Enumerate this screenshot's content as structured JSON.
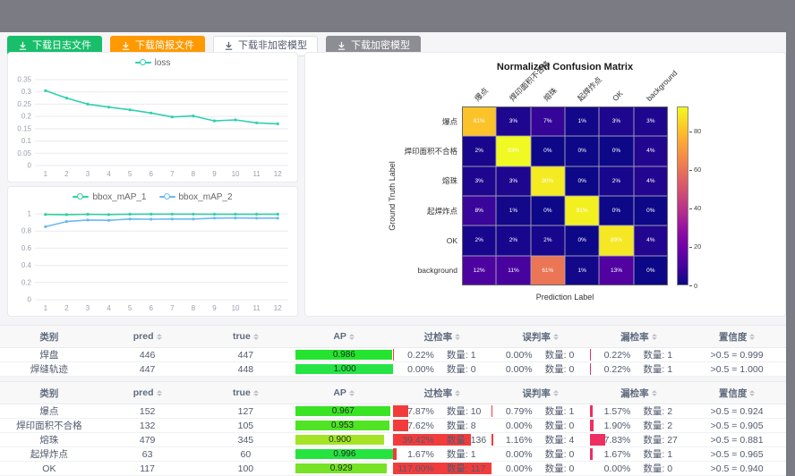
{
  "toolbar": {
    "buttons": [
      {
        "label": "下载日志文件",
        "style": "success"
      },
      {
        "label": "下载简报文件",
        "style": "warning"
      },
      {
        "label": "下载非加密模型",
        "style": "default"
      },
      {
        "label": "下载加密模型",
        "style": "gray"
      }
    ]
  },
  "chart_data": [
    {
      "type": "line",
      "x": [
        "1",
        "2",
        "3",
        "4",
        "5",
        "6",
        "7",
        "8",
        "9",
        "10",
        "11",
        "12"
      ],
      "yticks": [
        "0",
        "0.05",
        "0.1",
        "0.15",
        "0.2",
        "0.25",
        "0.3",
        "0.35"
      ],
      "ylim": [
        0,
        0.35
      ],
      "legend_position": "top",
      "grid": true,
      "series": [
        {
          "name": "loss",
          "color": "#2fd0b2",
          "values": [
            0.305,
            0.275,
            0.25,
            0.238,
            0.227,
            0.214,
            0.198,
            0.202,
            0.182,
            0.186,
            0.174,
            0.17
          ]
        }
      ]
    },
    {
      "type": "line",
      "x": [
        "1",
        "2",
        "3",
        "4",
        "5",
        "6",
        "7",
        "8",
        "9",
        "10",
        "11",
        "12"
      ],
      "yticks": [
        "0",
        "0.2",
        "0.4",
        "0.6",
        "0.8",
        "1"
      ],
      "ylim": [
        0,
        1
      ],
      "legend_position": "top",
      "grid": true,
      "series": [
        {
          "name": "bbox_mAP_1",
          "color": "#2fd0a0",
          "values": [
            0.993,
            0.991,
            0.995,
            0.992,
            0.996,
            0.997,
            0.997,
            0.997,
            0.996,
            0.996,
            0.996,
            0.996
          ]
        },
        {
          "name": "bbox_mAP_2",
          "color": "#6cb8f2",
          "values": [
            0.85,
            0.91,
            0.928,
            0.925,
            0.94,
            0.938,
            0.94,
            0.94,
            0.95,
            0.952,
            0.95,
            0.95
          ]
        }
      ]
    },
    {
      "type": "heatmap",
      "title": "Normalized Confusion Matrix",
      "xlabel": "Prediction Label",
      "ylabel": "Ground Truth Label",
      "labels": [
        "爆点",
        "焊印面积不合格",
        "熔珠",
        "起焊炸点",
        "OK",
        "background"
      ],
      "matrix": [
        [
          81,
          3,
          7,
          1,
          3,
          3
        ],
        [
          2,
          93,
          0,
          0,
          0,
          4
        ],
        [
          3,
          3,
          90,
          0,
          2,
          4
        ],
        [
          8,
          1,
          0,
          91,
          0,
          0
        ],
        [
          2,
          2,
          2,
          0,
          89,
          4
        ],
        [
          12,
          11,
          61,
          1,
          13,
          0
        ]
      ],
      "unit": "%",
      "vmax": 93,
      "colorbar_ticks": [
        0,
        20,
        40,
        60,
        80
      ],
      "colormap": "plasma",
      "legend_position": "right"
    }
  ],
  "table_headers": [
    "类别",
    "pred",
    "true",
    "AP",
    "过检率",
    "误判率",
    "漏检率",
    "置信度"
  ],
  "count_prefix": "数量:",
  "tables": [
    {
      "rows": [
        {
          "name": "焊盘",
          "pred": "446",
          "true": "447",
          "ap": "0.986",
          "over_pct": "0.22%",
          "over_n": "数量: 1",
          "over_v": 0.22,
          "mis_pct": "0.00%",
          "mis_n": "数量: 0",
          "mis_v": 0,
          "miss_pct": "0.22%",
          "miss_n": "数量: 1",
          "miss_v": 0.22,
          "conf": ">0.5 = 0.999"
        },
        {
          "name": "焊缝轨迹",
          "pred": "447",
          "true": "448",
          "ap": "1.000",
          "over_pct": "0.00%",
          "over_n": "数量: 0",
          "over_v": 0,
          "mis_pct": "0.00%",
          "mis_n": "数量: 0",
          "mis_v": 0,
          "miss_pct": "0.22%",
          "miss_n": "数量: 1",
          "miss_v": 0.22,
          "conf": ">0.5 = 1.000"
        }
      ]
    },
    {
      "rows": [
        {
          "name": "爆点",
          "pred": "152",
          "true": "127",
          "ap": "0.967",
          "over_pct": "7.87%",
          "over_n": "数量: 10",
          "over_v": 7.87,
          "mis_pct": "0.79%",
          "mis_n": "数量: 1",
          "mis_v": 0.79,
          "miss_pct": "1.57%",
          "miss_n": "数量: 2",
          "miss_v": 1.57,
          "conf": ">0.5 = 0.924"
        },
        {
          "name": "焊印面积不合格",
          "pred": "132",
          "true": "105",
          "ap": "0.953",
          "over_pct": "7.62%",
          "over_n": "数量: 8",
          "over_v": 7.62,
          "mis_pct": "0.00%",
          "mis_n": "数量: 0",
          "mis_v": 0,
          "miss_pct": "1.90%",
          "miss_n": "数量: 2",
          "miss_v": 1.9,
          "conf": ">0.5 = 0.905"
        },
        {
          "name": "熔珠",
          "pred": "479",
          "true": "345",
          "ap": "0.900",
          "over_pct": "39.42%",
          "over_n": "数量: 136",
          "over_v": 39.42,
          "mis_pct": "1.16%",
          "mis_n": "数量: 4",
          "mis_v": 1.16,
          "miss_pct": "7.83%",
          "miss_n": "数量: 27",
          "miss_v": 7.83,
          "conf": ">0.5 = 0.881"
        },
        {
          "name": "起焊炸点",
          "pred": "63",
          "true": "60",
          "ap": "0.996",
          "over_pct": "1.67%",
          "over_n": "数量: 1",
          "over_v": 1.67,
          "mis_pct": "0.00%",
          "mis_n": "数量: 0",
          "mis_v": 0,
          "miss_pct": "1.67%",
          "miss_n": "数量: 1",
          "miss_v": 1.67,
          "conf": ">0.5 = 0.965"
        },
        {
          "name": "OK",
          "pred": "117",
          "true": "100",
          "ap": "0.929",
          "over_pct": "117.00%",
          "over_n": "数量: 117",
          "over_v": 117,
          "mis_pct": "0.00%",
          "mis_n": "数量: 0",
          "mis_v": 0,
          "miss_pct": "0.00%",
          "miss_n": "数量: 0",
          "miss_v": 0,
          "conf": ">0.5 = 0.940"
        }
      ]
    }
  ],
  "colors": {
    "ap_bar_low": "hsl(80,78%,52%)",
    "ap_bar_high": "hsl(132,78%,52%)",
    "over_bar": "#f23c3c",
    "misjudge_bar": "#f23c3c",
    "miss_bar": "#ef2e62",
    "button_success": "#19be6b",
    "button_warning": "#ff9900",
    "button_gray": "#8d8d94"
  }
}
